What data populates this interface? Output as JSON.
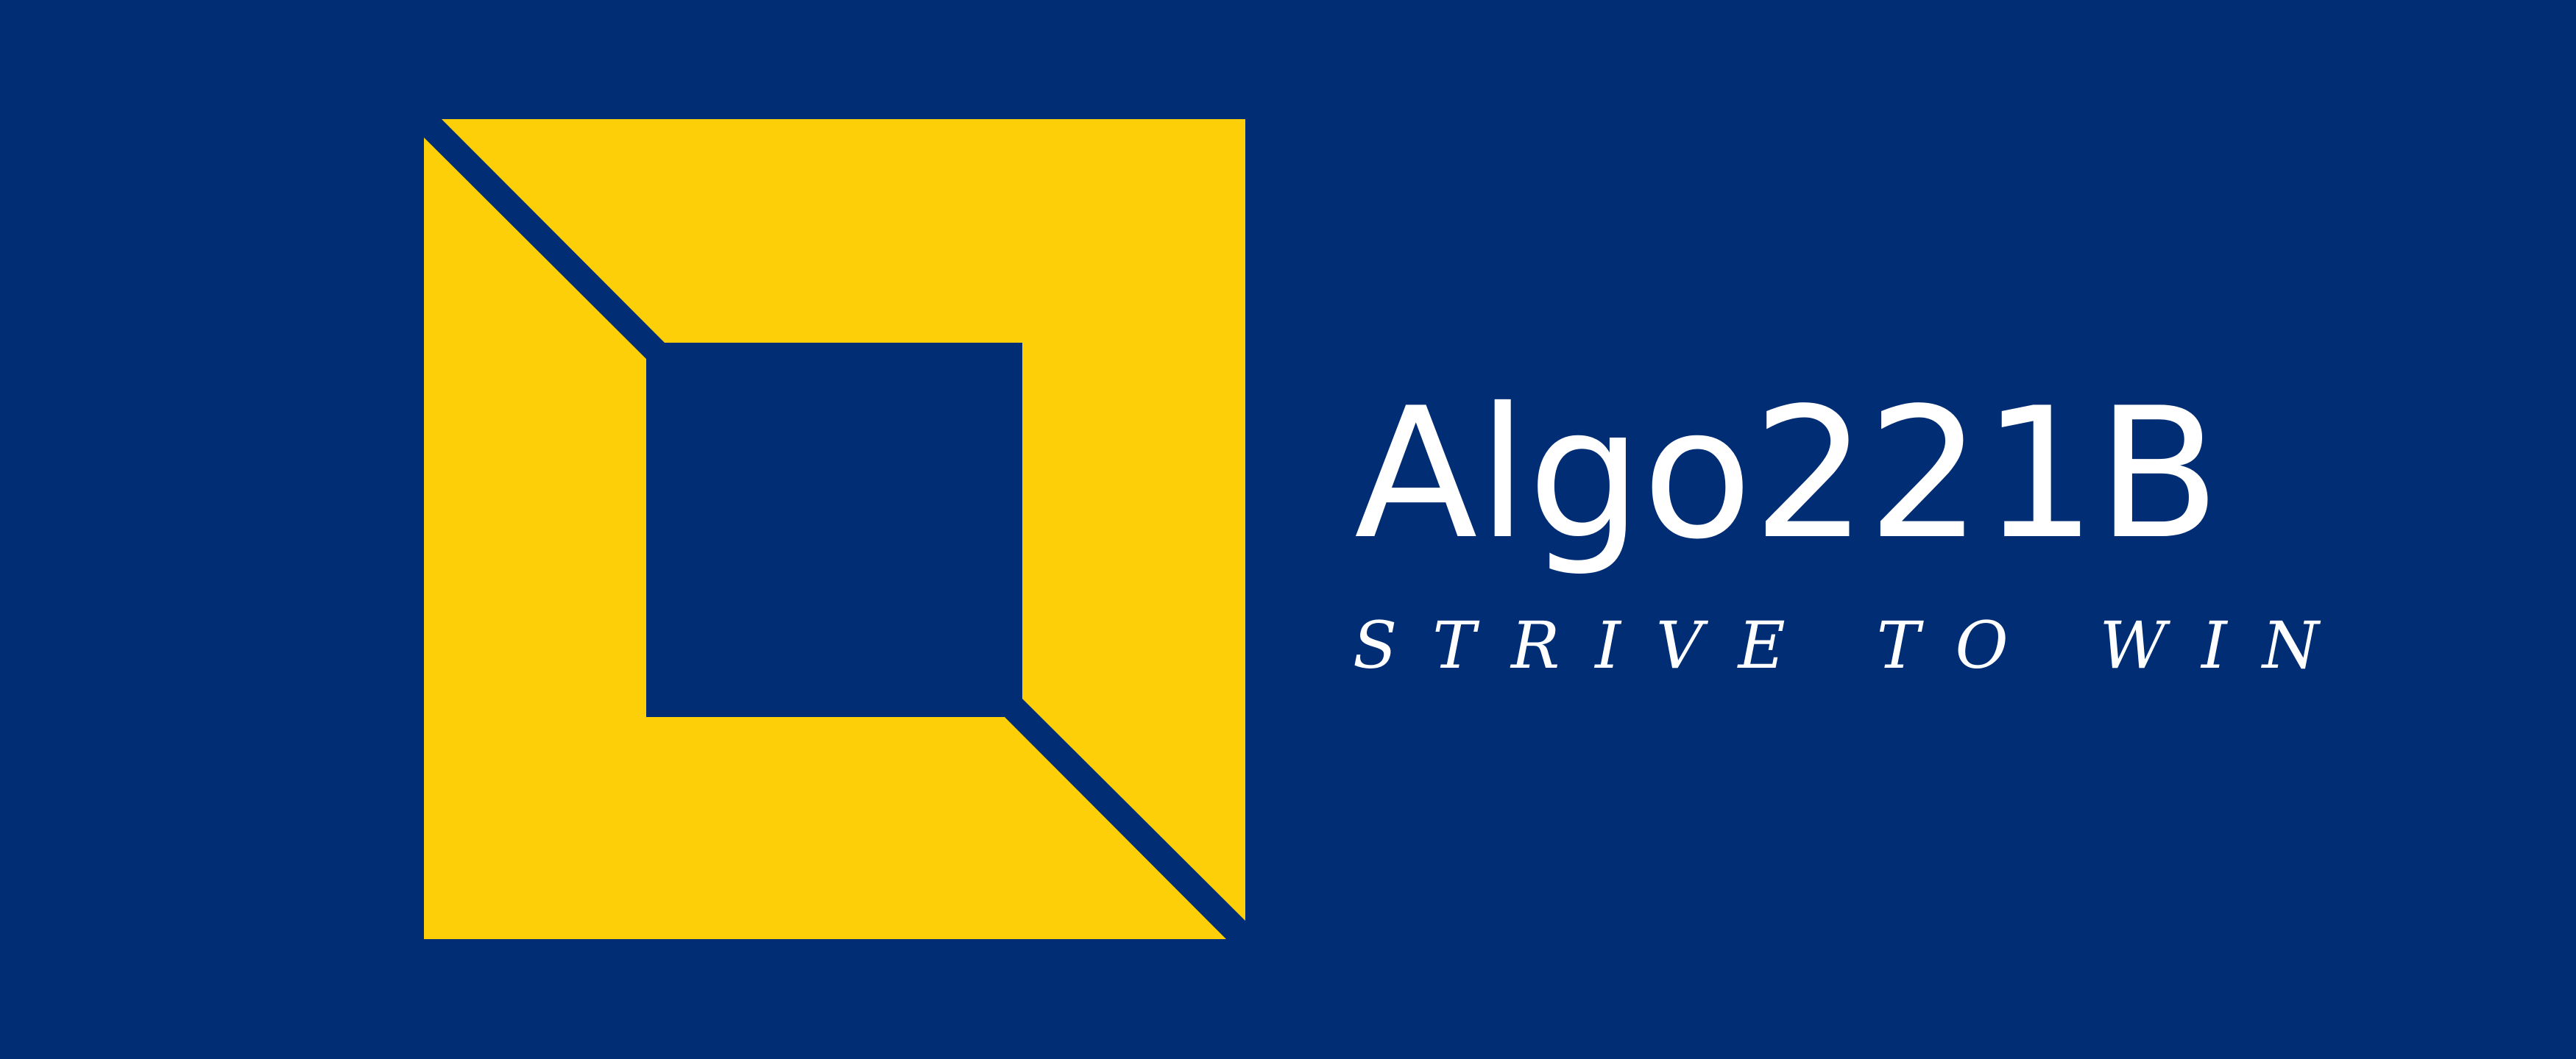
{
  "brand": {
    "name": "Algo221B",
    "tagline": "STRIVE TO WIN"
  },
  "colors": {
    "background": "#002d74",
    "accent": "#fdcf09",
    "text": "#ffffff"
  },
  "icons": {
    "logo_mark": "square-frame-logo-icon"
  }
}
